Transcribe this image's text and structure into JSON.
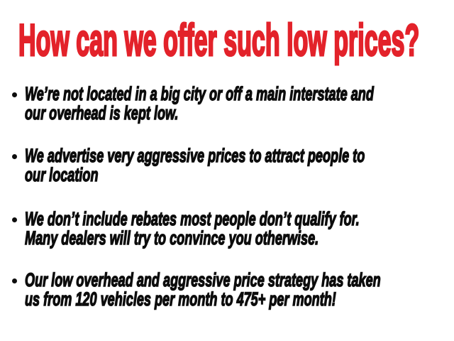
{
  "slide": {
    "colors": {
      "background": "#ffffff",
      "heading_red": "#e3222a",
      "text_black": "#0d0d0d"
    },
    "heading": {
      "text": "How can we offer such low prices?"
    },
    "bullets": {
      "items": [
        {
          "lines": [
            "We’re not located in a big city or off a main interstate and",
            "our overhead is kept low."
          ]
        },
        {
          "lines": [
            "We advertise very aggressive prices to attract people to",
            "our location"
          ]
        },
        {
          "lines": [
            "We don’t include rebates most people don’t qualify for.",
            "Many dealers will try to convince you otherwise."
          ]
        },
        {
          "lines": [
            "Our low overhead and aggressive price strategy has taken",
            "us from 120 vehicles per month to 475+ per month!"
          ]
        }
      ]
    }
  }
}
